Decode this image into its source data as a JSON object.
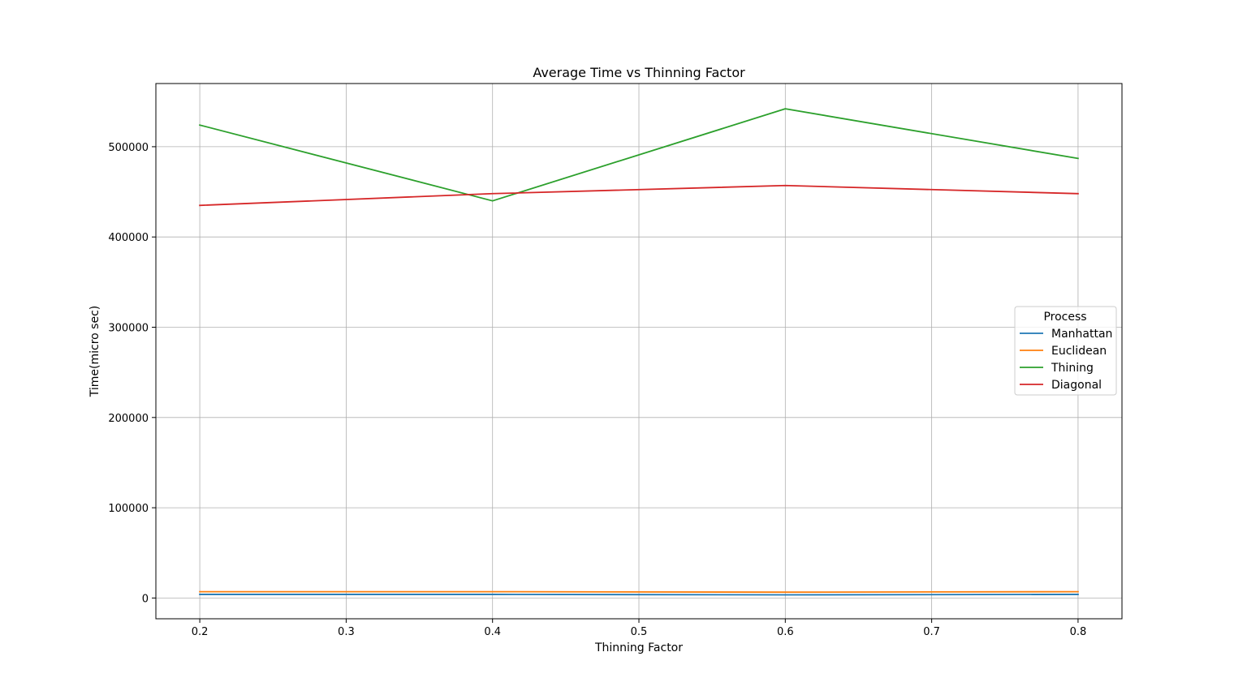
{
  "chart_data": {
    "type": "line",
    "title": "Average Time vs Thinning Factor",
    "xlabel": "Thinning Factor",
    "ylabel": "Time(micro sec)",
    "x": [
      0.2,
      0.4,
      0.6,
      0.8
    ],
    "xticks": [
      "0.2",
      "0.3",
      "0.4",
      "0.5",
      "0.6",
      "0.7",
      "0.8"
    ],
    "yticks": [
      "0",
      "100000",
      "200000",
      "300000",
      "400000",
      "500000"
    ],
    "xlim": [
      0.17,
      0.83
    ],
    "ylim": [
      -23000,
      570000
    ],
    "grid": true,
    "legend": {
      "title": "Process",
      "placement": "center-right"
    },
    "series": [
      {
        "name": "Manhattan",
        "color": "#1f77b4",
        "values": [
          4000,
          4000,
          3500,
          4000
        ]
      },
      {
        "name": "Euclidean",
        "color": "#ff7f0e",
        "values": [
          7000,
          7000,
          6500,
          7000
        ]
      },
      {
        "name": "Thining",
        "color": "#2ca02c",
        "values": [
          524000,
          440000,
          542000,
          487000
        ]
      },
      {
        "name": "Diagonal",
        "color": "#d62728",
        "values": [
          435000,
          448000,
          457000,
          448000
        ]
      }
    ]
  }
}
